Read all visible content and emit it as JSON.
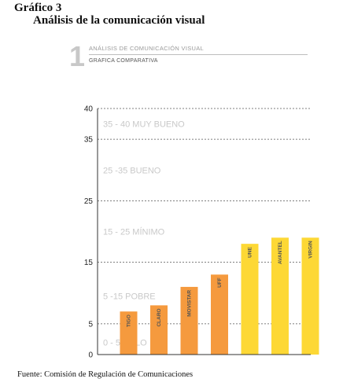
{
  "document": {
    "title": "Gráfico 3",
    "subtitle": "Análisis de la comunicación visual",
    "source": "Fuente: Comisión de Regulación de Comunicaciones"
  },
  "figure_header": {
    "number": "1",
    "title": "ANÁLISIS DE COMUNICACIÓN VISUAL",
    "subtitle": "GRAFICA COMPARATIVA"
  },
  "colors": {
    "orange": "#f59a3e",
    "yellow": "#fdd835",
    "band_text": "#c9c9c9",
    "grid": "#555555"
  },
  "chart_data": {
    "type": "bar",
    "categories": [
      "TIGO",
      "CLARO",
      "MOVISTAR",
      "UFF",
      "UNE",
      "AVANTEL",
      "VIRGIN"
    ],
    "values": [
      7,
      8,
      11,
      13,
      18,
      19,
      19
    ],
    "bar_colors": [
      "orange",
      "orange",
      "orange",
      "orange",
      "yellow",
      "yellow",
      "yellow"
    ],
    "yticks": [
      0,
      5,
      15,
      25,
      35,
      40
    ],
    "ylim": [
      0,
      40
    ],
    "grid": true,
    "bands": [
      {
        "label": "35 - 40 MUY BUENO",
        "y": 37.5
      },
      {
        "label": "25 -35 BUENO",
        "y": 30
      },
      {
        "label": "15 - 25 MÍNIMO",
        "y": 20
      },
      {
        "label": "5 -15 POBRE",
        "y": 9.5
      },
      {
        "label": "0 - 5 NULO",
        "y": 2
      }
    ]
  }
}
